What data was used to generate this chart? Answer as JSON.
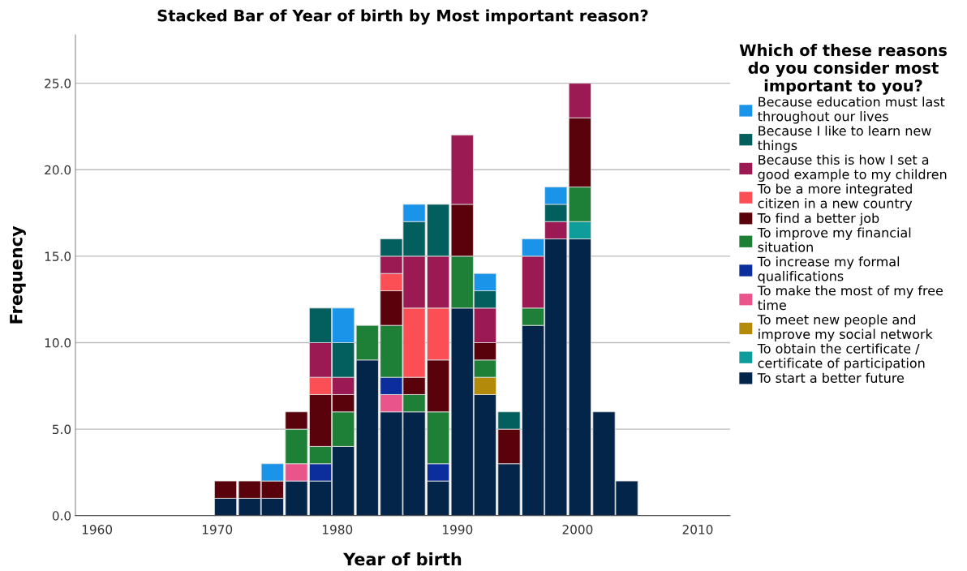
{
  "chart_data": {
    "type": "bar",
    "stacked": true,
    "title": "Stacked Bar of Year of birth by Most important reason?",
    "xlabel": "Year of birth",
    "ylabel": "Frequency",
    "legend_title": "Which of these reasons do you consider most important to you?",
    "legend": "right",
    "grid": "y",
    "x": [
      1970.7,
      1972.7,
      1974.6,
      1976.6,
      1978.6,
      1980.5,
      1982.5,
      1984.5,
      1986.4,
      1988.4,
      1990.4,
      1992.3,
      1994.3,
      1996.3,
      1998.2,
      2000.2,
      2002.2,
      2004.1
    ],
    "xlim": [
      1958.2,
      2012.7
    ],
    "xticks": [
      1960,
      1970,
      1980,
      1990,
      2000,
      2010
    ],
    "ylim": [
      0,
      27.8
    ],
    "yticks": [
      {
        "value": 0,
        "label": "0.0"
      },
      {
        "value": 5,
        "label": "5.0"
      },
      {
        "value": 10,
        "label": "10.0"
      },
      {
        "value": 15,
        "label": "15.0"
      },
      {
        "value": 20,
        "label": "20.0"
      },
      {
        "value": 25,
        "label": "25.0"
      }
    ],
    "series": [
      {
        "name": "To start a better future",
        "color": "#04254a",
        "values": [
          1,
          1,
          1,
          2,
          2,
          4,
          9,
          6,
          6,
          2,
          12,
          7,
          3,
          11,
          16,
          16,
          6,
          2
        ]
      },
      {
        "name": "To obtain the certificate / certificate of participation",
        "color": "#0f9d9b",
        "values": [
          0,
          0,
          0,
          0,
          0,
          0,
          0,
          0,
          0,
          0,
          0,
          0,
          0,
          0,
          0,
          1,
          0,
          0
        ]
      },
      {
        "name": "To meet new people and improve my social network",
        "color": "#b38a0a",
        "values": [
          0,
          0,
          0,
          0,
          0,
          0,
          0,
          0,
          0,
          0,
          0,
          1,
          0,
          0,
          0,
          0,
          0,
          0
        ]
      },
      {
        "name": "To make the most of my free time",
        "color": "#e9548b",
        "values": [
          0,
          0,
          0,
          1,
          0,
          0,
          0,
          1,
          0,
          0,
          0,
          0,
          0,
          0,
          0,
          0,
          0,
          0
        ]
      },
      {
        "name": "To increase my formal qualifications",
        "color": "#0c2d9c",
        "values": [
          0,
          0,
          0,
          0,
          1,
          0,
          0,
          1,
          0,
          1,
          0,
          0,
          0,
          0,
          0,
          0,
          0,
          0
        ]
      },
      {
        "name": "To improve my financial situation",
        "color": "#1e8037",
        "values": [
          0,
          0,
          0,
          2,
          1,
          2,
          2,
          3,
          1,
          3,
          3,
          1,
          0,
          1,
          0,
          2,
          0,
          0
        ]
      },
      {
        "name": "To find a better job",
        "color": "#5a020c",
        "values": [
          1,
          1,
          1,
          1,
          3,
          1,
          0,
          2,
          1,
          3,
          3,
          1,
          2,
          0,
          0,
          4,
          0,
          0
        ]
      },
      {
        "name": "To be a more integrated citizen in a new country",
        "color": "#fc4f55",
        "values": [
          0,
          0,
          0,
          0,
          1,
          0,
          0,
          1,
          4,
          3,
          0,
          0,
          0,
          0,
          0,
          0,
          0,
          0
        ]
      },
      {
        "name": "Because this is how I set a good example to my children",
        "color": "#9b1a53",
        "values": [
          0,
          0,
          0,
          0,
          2,
          1,
          0,
          1,
          3,
          3,
          4,
          2,
          0,
          3,
          1,
          2,
          0,
          0
        ]
      },
      {
        "name": "Because I like to learn new things",
        "color": "#035f5e",
        "values": [
          0,
          0,
          0,
          0,
          2,
          2,
          0,
          1,
          2,
          3,
          0,
          1,
          1,
          0,
          1,
          0,
          0,
          0
        ]
      },
      {
        "name": "Because education must last throughout our lives",
        "color": "#1a94e8",
        "values": [
          0,
          0,
          1,
          0,
          0,
          2,
          0,
          0,
          1,
          0,
          0,
          1,
          0,
          1,
          1,
          0,
          0,
          0
        ]
      }
    ]
  }
}
